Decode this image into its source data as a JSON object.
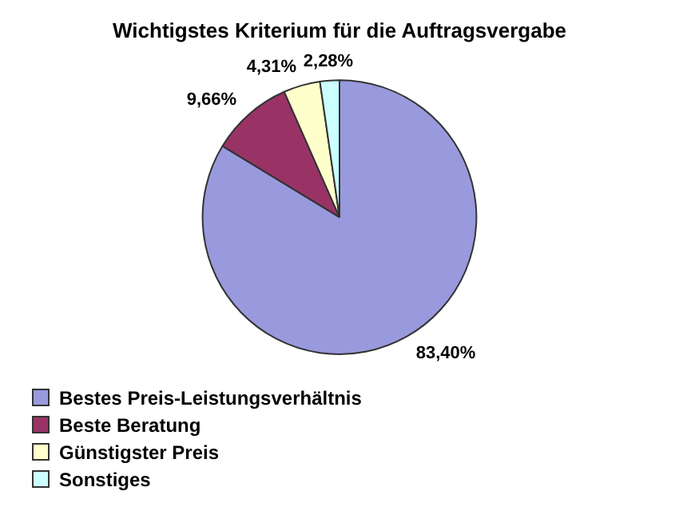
{
  "chart_data": {
    "type": "pie",
    "title": "Wichtigstes Kriterium für die Auftragsvergabe",
    "categories": [
      "Bestes Preis-Leistungsverhältnis",
      "Beste Beratung",
      "Günstigster Preis",
      "Sonstiges"
    ],
    "values": [
      83.4,
      9.66,
      4.31,
      2.28
    ],
    "colors": [
      "#9999dd",
      "#993366",
      "#ffffcc",
      "#ccffff"
    ],
    "value_labels": [
      "83,40%",
      "9,66%",
      "4,31%",
      "2,28%"
    ],
    "legend": "bottom left"
  }
}
